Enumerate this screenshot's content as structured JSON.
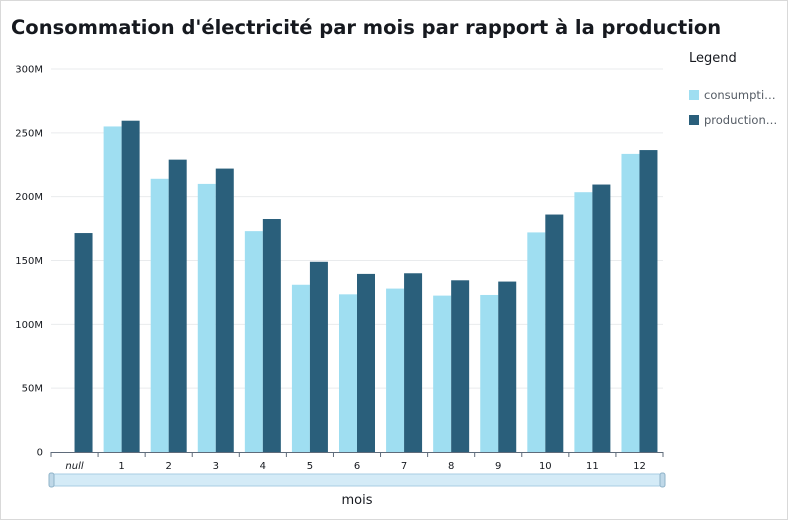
{
  "chart_data": {
    "type": "bar",
    "title": "Consommation d'électricité par mois par rapport à la production",
    "xlabel": "mois",
    "ylabel": "",
    "ylim": [
      0,
      300000000
    ],
    "yticks": [
      0,
      50000000,
      100000000,
      150000000,
      200000000,
      250000000,
      300000000
    ],
    "ytick_labels": [
      "0",
      "50M",
      "100M",
      "150M",
      "200M",
      "250M",
      "300M"
    ],
    "grid": true,
    "legend_title": "Legend",
    "legend_position": "right",
    "categories": [
      "null",
      "1",
      "2",
      "3",
      "4",
      "5",
      "6",
      "7",
      "8",
      "9",
      "10",
      "11",
      "12"
    ],
    "series": [
      {
        "name": "consumpti…",
        "color": "#9fdef1",
        "values": [
          0,
          255000000,
          214000000,
          210000000,
          173000000,
          131000000,
          123500000,
          128000000,
          122500000,
          123000000,
          172000000,
          203500000,
          233500000
        ]
      },
      {
        "name": "production…",
        "color": "#2a5f7b",
        "values": [
          171500000,
          259500000,
          229000000,
          222000000,
          182500000,
          149000000,
          139500000,
          140000000,
          134500000,
          133500000,
          186000000,
          209500000,
          236500000
        ]
      }
    ]
  }
}
